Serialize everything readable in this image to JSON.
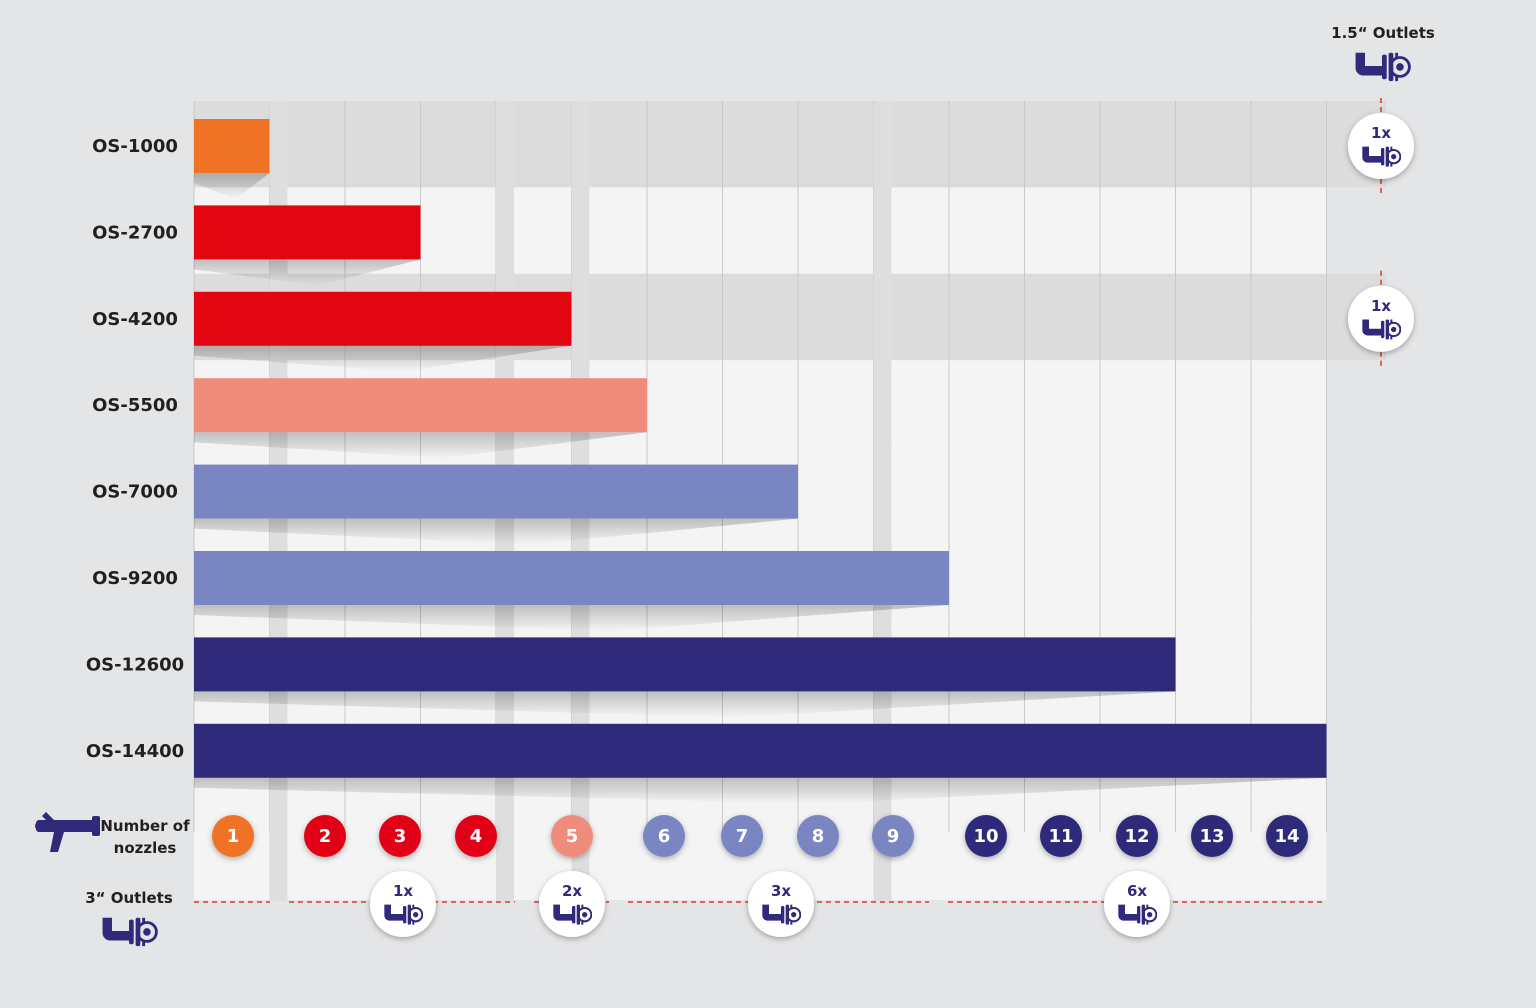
{
  "chart_data": {
    "type": "bar",
    "orientation": "horizontal",
    "categories": [
      "OS-1000",
      "OS-2700",
      "OS-4200",
      "OS-5500",
      "OS-7000",
      "OS-9200",
      "OS-12600",
      "OS-14400"
    ],
    "values": [
      1,
      3,
      5,
      6,
      8,
      10,
      13,
      15
    ],
    "bar_colors": [
      "#ee7326",
      "#e20613",
      "#e20613",
      "#f08c7b",
      "#7a86c2",
      "#7a86c2",
      "#2f2a7a",
      "#2f2a7a"
    ],
    "xlim": [
      0,
      15
    ],
    "grid": true,
    "nozzle_axis": {
      "label_line1": "Number of",
      "label_line2": "nozzles",
      "numbers": [
        "1",
        "2",
        "3",
        "4",
        "5",
        "6",
        "7",
        "8",
        "9",
        "10",
        "11",
        "12",
        "13",
        "14"
      ],
      "colors": [
        "#ee7326",
        "#e20613",
        "#e20613",
        "#e20613",
        "#f08c7b",
        "#7a86c2",
        "#7a86c2",
        "#7a86c2",
        "#7a86c2",
        "#2f2a7a",
        "#2f2a7a",
        "#2f2a7a",
        "#2f2a7a",
        "#2f2a7a"
      ]
    },
    "outlets_3in": {
      "label": "3“ Outlets",
      "groups": [
        {
          "count": "1x",
          "from_nozzle": 2,
          "to_nozzle": 4
        },
        {
          "count": "2x",
          "from_nozzle": 5,
          "to_nozzle": 5
        },
        {
          "count": "3x",
          "from_nozzle": 6,
          "to_nozzle": 9
        },
        {
          "count": "6x",
          "from_nozzle": 10,
          "to_nozzle": 14
        }
      ]
    },
    "outlets_1_5in": {
      "label": "1.5“ Outlets",
      "badges": [
        {
          "category": "OS-1000",
          "count": "1x"
        },
        {
          "category": "OS-4200",
          "count": "1x"
        }
      ]
    }
  },
  "colors": {
    "background": "#e4e5e7",
    "band_dark": "#dcdcdc",
    "band_light": "#f4f4f4",
    "grid": "#c9c9c9",
    "dashed": "#e0362a",
    "icon": "#2f2a7a"
  },
  "icons": {
    "nozzle": "fire-nozzle-icon",
    "outlet": "hose-coupling-icon"
  }
}
